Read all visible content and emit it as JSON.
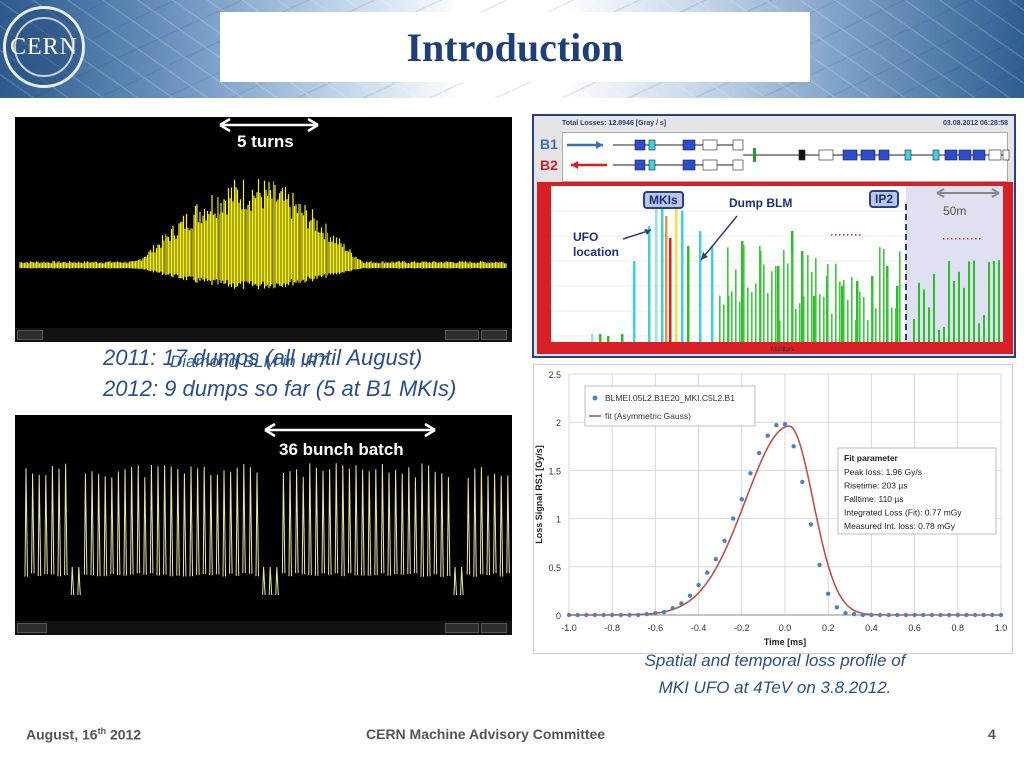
{
  "header": {
    "logo_text": "CERN",
    "title": "Introduction"
  },
  "scope_top": {
    "arrow_label": "5 turns",
    "caption": "Diamond BLM in IR7"
  },
  "scope_bottom": {
    "arrow_label": "36 bunch batch"
  },
  "stats": {
    "line1": "2011: 17 dumps (all until August)",
    "line2": "2012: 9 dumps so far (5 at B1 MKIs)"
  },
  "blm_display": {
    "total_losses": "Total Losses: 12.8946 [Gray / s]",
    "timestamp": "03.08.2012 06:28:58",
    "beam1": "B1",
    "beam2": "B2",
    "mkis": "MKIs",
    "dump_blm": "Dump BLM",
    "ip2": "IP2",
    "distance": "50m",
    "ufo_location": "UFO\nlocation",
    "xlabel": "Monitors",
    "colors": {
      "frame": "#d91f26",
      "b1": "#3a6fb5",
      "b2": "#d91f26"
    }
  },
  "chart_data": {
    "type": "line",
    "title": "",
    "xlabel": "Time [ms]",
    "ylabel": "Loss Signal RS1 [Gy/s]",
    "xlim": [
      -1.0,
      1.0
    ],
    "ylim": [
      0,
      2.5
    ],
    "xticks": [
      "-1.0",
      "-0.8",
      "-0.6",
      "-0.4",
      "-0.2",
      "0.0",
      "0.2",
      "0.4",
      "0.6",
      "0.8",
      "1.0"
    ],
    "yticks": [
      "0",
      "0.5",
      "1",
      "1.5",
      "2",
      "2.5"
    ],
    "legend": [
      "BLMEI.05L2.B1E20_MKI.C5L2.B1",
      "fit (Asymmetric Gauss)"
    ],
    "fit_box": {
      "title": "Fit parameter",
      "lines": [
        "Peak loss: 1.96 Gy/s",
        "Risetime: 203 µs",
        "Falltime: 110 µs",
        "Integrated Loss (Fit): 0.77 mGy",
        "Measured Int. loss: 0.78 mGy"
      ]
    },
    "fit_params": {
      "peak": 1.96,
      "center": 0.02,
      "rise": 0.203,
      "fall": 0.11
    },
    "series": [
      {
        "name": "BLMEI.05L2.B1E20_MKI.C5L2.B1",
        "x": [
          -1.0,
          -0.96,
          -0.92,
          -0.88,
          -0.84,
          -0.8,
          -0.76,
          -0.72,
          -0.68,
          -0.64,
          -0.6,
          -0.56,
          -0.52,
          -0.48,
          -0.44,
          -0.4,
          -0.36,
          -0.32,
          -0.28,
          -0.24,
          -0.2,
          -0.16,
          -0.12,
          -0.08,
          -0.04,
          0.0,
          0.04,
          0.08,
          0.12,
          0.16,
          0.2,
          0.24,
          0.28,
          0.32,
          0.36,
          0.4,
          0.44,
          0.48,
          0.52,
          0.56,
          0.6,
          0.64,
          0.68,
          0.72,
          0.76,
          0.8,
          0.84,
          0.88,
          0.92,
          0.96,
          1.0
        ],
        "y": [
          0,
          0,
          0,
          0,
          0,
          0,
          0,
          0,
          0,
          0.01,
          0.02,
          0.03,
          0.07,
          0.12,
          0.2,
          0.31,
          0.44,
          0.58,
          0.77,
          1.0,
          1.2,
          1.47,
          1.68,
          1.86,
          1.97,
          1.98,
          1.75,
          1.38,
          0.94,
          0.52,
          0.22,
          0.08,
          0.02,
          0.01,
          0,
          0,
          0,
          0,
          0,
          0,
          0,
          0,
          0,
          0,
          0,
          0,
          0,
          0,
          0,
          0,
          0
        ]
      }
    ],
    "colors": {
      "points": "#4f81bd",
      "fit": "#c0504d"
    }
  },
  "fit_caption": {
    "line1": "Spatial and temporal loss profile of",
    "line2": "MKI UFO at 4TeV on 3.8.2012."
  },
  "footer": {
    "date_prefix": "August, 16",
    "date_sup": "th",
    "date_suffix": " 2012",
    "center": "CERN Machine Advisory Committee",
    "page": "4"
  }
}
